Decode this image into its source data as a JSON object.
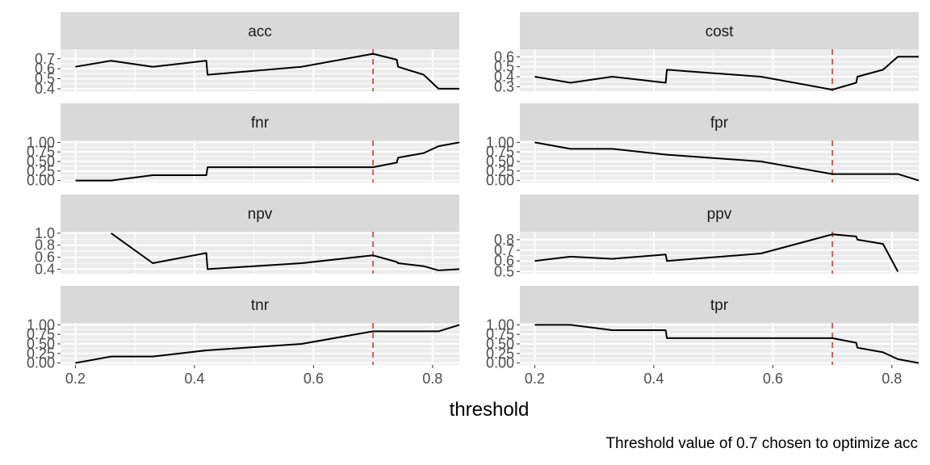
{
  "chart_data": {
    "type": "line",
    "title": "",
    "xlabel": "threshold",
    "ylabel": "",
    "caption": "Threshold value of 0.7 chosen to optimize acc",
    "chosen_threshold": 0.7,
    "xlim": [
      0.175,
      0.845
    ],
    "x_ticks": [
      0.2,
      0.4,
      0.6,
      0.8
    ],
    "x_tick_labels": [
      "0.2",
      "0.4",
      "0.6",
      "0.8"
    ],
    "grid": true,
    "facet_columns": 2,
    "colors": {
      "panel_background": "#ebebeb",
      "grid": "#ffffff",
      "strip_background": "#d9d9d9",
      "line": "#000000",
      "threshold_line": "#cd5c5c"
    },
    "panels": [
      {
        "name": "acc",
        "ylim": [
          0.375,
          0.795
        ],
        "y_ticks": [
          0.4,
          0.5,
          0.6,
          0.7
        ],
        "y_tick_labels": [
          "0.4",
          "0.5",
          "0.6",
          "0.7"
        ],
        "points": [
          [
            0.2,
            0.62
          ],
          [
            0.26,
            0.68
          ],
          [
            0.33,
            0.62
          ],
          [
            0.42,
            0.68
          ],
          [
            0.422,
            0.54
          ],
          [
            0.58,
            0.62
          ],
          [
            0.7,
            0.75
          ],
          [
            0.74,
            0.69
          ],
          [
            0.742,
            0.62
          ],
          [
            0.785,
            0.54
          ],
          [
            0.81,
            0.4
          ],
          [
            0.845,
            0.4
          ]
        ]
      },
      {
        "name": "cost",
        "ylim": [
          0.255,
          0.675
        ],
        "y_ticks": [
          0.3,
          0.4,
          0.5,
          0.6
        ],
        "y_tick_labels": [
          "0.3",
          "0.4",
          "0.5",
          "0.6"
        ],
        "points": [
          [
            0.2,
            0.4
          ],
          [
            0.26,
            0.34
          ],
          [
            0.33,
            0.4
          ],
          [
            0.42,
            0.34
          ],
          [
            0.422,
            0.47
          ],
          [
            0.58,
            0.4
          ],
          [
            0.7,
            0.27
          ],
          [
            0.74,
            0.34
          ],
          [
            0.742,
            0.4
          ],
          [
            0.785,
            0.47
          ],
          [
            0.81,
            0.6
          ],
          [
            0.845,
            0.6
          ]
        ]
      },
      {
        "name": "fnr",
        "ylim": [
          -0.05,
          1.05
        ],
        "y_ticks": [
          0,
          0.25,
          0.5,
          0.75,
          1
        ],
        "y_tick_labels": [
          "0.00",
          "0.25",
          "0.50",
          "0.75",
          "1.00"
        ],
        "points": [
          [
            0.2,
            0.0
          ],
          [
            0.26,
            0.0
          ],
          [
            0.33,
            0.14
          ],
          [
            0.42,
            0.14
          ],
          [
            0.422,
            0.35
          ],
          [
            0.58,
            0.35
          ],
          [
            0.7,
            0.35
          ],
          [
            0.74,
            0.47
          ],
          [
            0.742,
            0.6
          ],
          [
            0.785,
            0.72
          ],
          [
            0.81,
            0.9
          ],
          [
            0.845,
            1.0
          ]
        ]
      },
      {
        "name": "fpr",
        "ylim": [
          -0.05,
          1.05
        ],
        "y_ticks": [
          0,
          0.25,
          0.5,
          0.75,
          1
        ],
        "y_tick_labels": [
          "0.00",
          "0.25",
          "0.50",
          "0.75",
          "1.00"
        ],
        "points": [
          [
            0.2,
            1.0
          ],
          [
            0.26,
            0.83
          ],
          [
            0.33,
            0.83
          ],
          [
            0.42,
            0.68
          ],
          [
            0.58,
            0.5
          ],
          [
            0.7,
            0.17
          ],
          [
            0.81,
            0.17
          ],
          [
            0.845,
            0.0
          ]
        ]
      },
      {
        "name": "npv",
        "ylim": [
          0.325,
          1.025
        ],
        "y_ticks": [
          0.4,
          0.6,
          0.8,
          1.0
        ],
        "y_tick_labels": [
          "0.4",
          "0.6",
          "0.8",
          "1.0"
        ],
        "points": [
          [
            0.26,
            1.0
          ],
          [
            0.33,
            0.5
          ],
          [
            0.42,
            0.67
          ],
          [
            0.422,
            0.4
          ],
          [
            0.58,
            0.5
          ],
          [
            0.7,
            0.63
          ],
          [
            0.74,
            0.52
          ],
          [
            0.742,
            0.5
          ],
          [
            0.785,
            0.45
          ],
          [
            0.81,
            0.38
          ],
          [
            0.845,
            0.4
          ]
        ]
      },
      {
        "name": "ppv",
        "ylim": [
          0.48,
          0.875
        ],
        "y_ticks": [
          0.5,
          0.6,
          0.7,
          0.8
        ],
        "y_tick_labels": [
          "0.5",
          "0.6",
          "0.7",
          "0.8"
        ],
        "points": [
          [
            0.2,
            0.6
          ],
          [
            0.26,
            0.64
          ],
          [
            0.33,
            0.62
          ],
          [
            0.42,
            0.66
          ],
          [
            0.422,
            0.6
          ],
          [
            0.58,
            0.67
          ],
          [
            0.7,
            0.85
          ],
          [
            0.74,
            0.83
          ],
          [
            0.742,
            0.8
          ],
          [
            0.785,
            0.76
          ],
          [
            0.81,
            0.5
          ]
        ]
      },
      {
        "name": "tnr",
        "ylim": [
          -0.05,
          1.05
        ],
        "y_ticks": [
          0,
          0.25,
          0.5,
          0.75,
          1
        ],
        "y_tick_labels": [
          "0.00",
          "0.25",
          "0.50",
          "0.75",
          "1.00"
        ],
        "points": [
          [
            0.2,
            0.0
          ],
          [
            0.26,
            0.17
          ],
          [
            0.33,
            0.17
          ],
          [
            0.42,
            0.33
          ],
          [
            0.58,
            0.5
          ],
          [
            0.7,
            0.83
          ],
          [
            0.81,
            0.83
          ],
          [
            0.845,
            1.0
          ]
        ]
      },
      {
        "name": "tpr",
        "ylim": [
          -0.05,
          1.05
        ],
        "y_ticks": [
          0,
          0.25,
          0.5,
          0.75,
          1
        ],
        "y_tick_labels": [
          "0.00",
          "0.25",
          "0.50",
          "0.75",
          "1.00"
        ],
        "points": [
          [
            0.2,
            1.0
          ],
          [
            0.26,
            1.0
          ],
          [
            0.33,
            0.86
          ],
          [
            0.42,
            0.86
          ],
          [
            0.422,
            0.65
          ],
          [
            0.58,
            0.65
          ],
          [
            0.7,
            0.65
          ],
          [
            0.74,
            0.53
          ],
          [
            0.742,
            0.4
          ],
          [
            0.785,
            0.28
          ],
          [
            0.81,
            0.1
          ],
          [
            0.845,
            0.0
          ]
        ]
      }
    ]
  }
}
